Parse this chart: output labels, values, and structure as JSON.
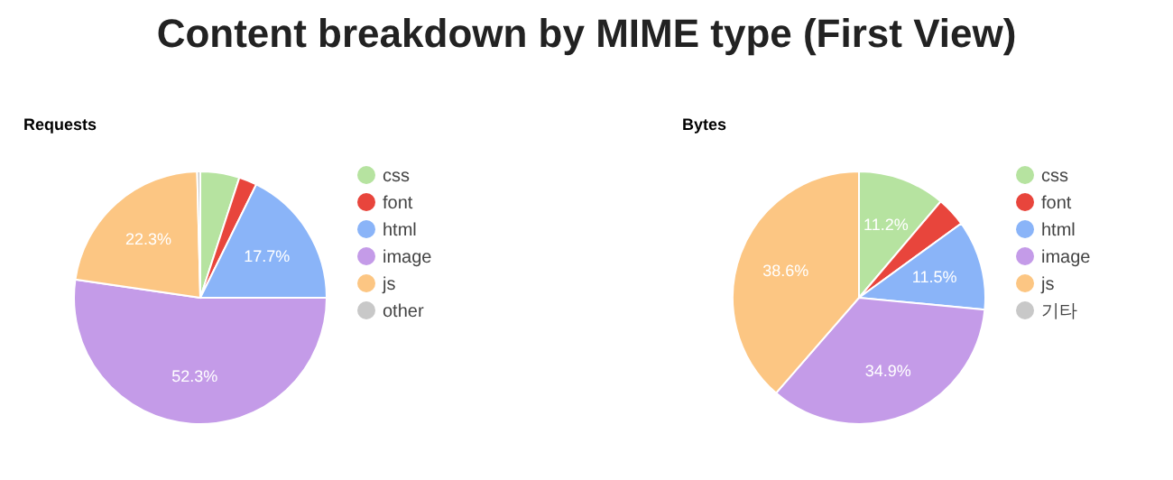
{
  "chart_data": [
    {
      "type": "pie",
      "title": "Content breakdown by MIME type (First View)",
      "subtitle": "Requests",
      "categories": [
        "css",
        "font",
        "html",
        "image",
        "js",
        "other"
      ],
      "values": [
        5.0,
        2.3,
        17.7,
        52.3,
        22.3,
        0.4
      ],
      "colors": [
        "#b6e3a0",
        "#e8453c",
        "#8ab4f8",
        "#c49be8",
        "#fcc683",
        "#c8c8c8"
      ],
      "value_labels": [
        null,
        null,
        "17.7%",
        "52.3%",
        "22.3%",
        null
      ],
      "legend": "right"
    },
    {
      "type": "pie",
      "subtitle": "Bytes",
      "categories": [
        "css",
        "font",
        "html",
        "image",
        "js",
        "기타"
      ],
      "values": [
        11.2,
        3.8,
        11.5,
        34.9,
        38.6,
        0
      ],
      "colors": [
        "#b6e3a0",
        "#e8453c",
        "#8ab4f8",
        "#c49be8",
        "#fcc683",
        "#c8c8c8"
      ],
      "value_labels": [
        "11.2%",
        null,
        "11.5%",
        "34.9%",
        "38.6%",
        null
      ],
      "legend": "right"
    }
  ]
}
